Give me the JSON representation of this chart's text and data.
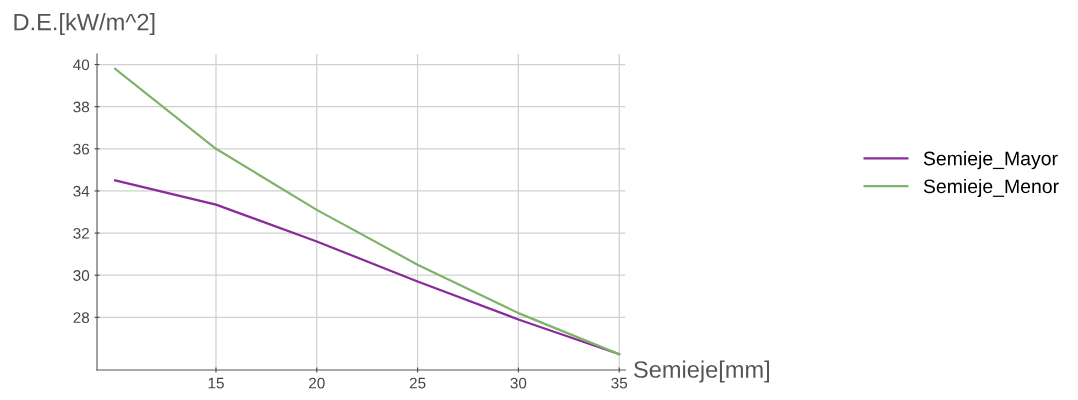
{
  "chart_data": {
    "type": "line",
    "xlabel": "Semieje[mm]",
    "ylabel": "D.E.[kW/m^2]",
    "x": [
      10,
      15,
      20,
      25,
      30,
      35
    ],
    "series": [
      {
        "name": "Semieje_Mayor",
        "color": "#8b2a9a",
        "values": [
          34.5,
          33.35,
          31.6,
          29.7,
          27.9,
          26.25
        ]
      },
      {
        "name": "Semieje_Menor",
        "color": "#7fb36a",
        "values": [
          39.8,
          36.0,
          33.1,
          30.5,
          28.2,
          26.25
        ]
      }
    ],
    "xlim": [
      9.1,
      35.3
    ],
    "ylim": [
      25.5,
      40.5
    ],
    "xticks": [
      15,
      20,
      25,
      30,
      35
    ],
    "yticks": [
      28,
      30,
      32,
      34,
      36,
      38,
      40
    ],
    "grid": true,
    "legend": "right",
    "marker": "none",
    "line_style": "solid"
  }
}
